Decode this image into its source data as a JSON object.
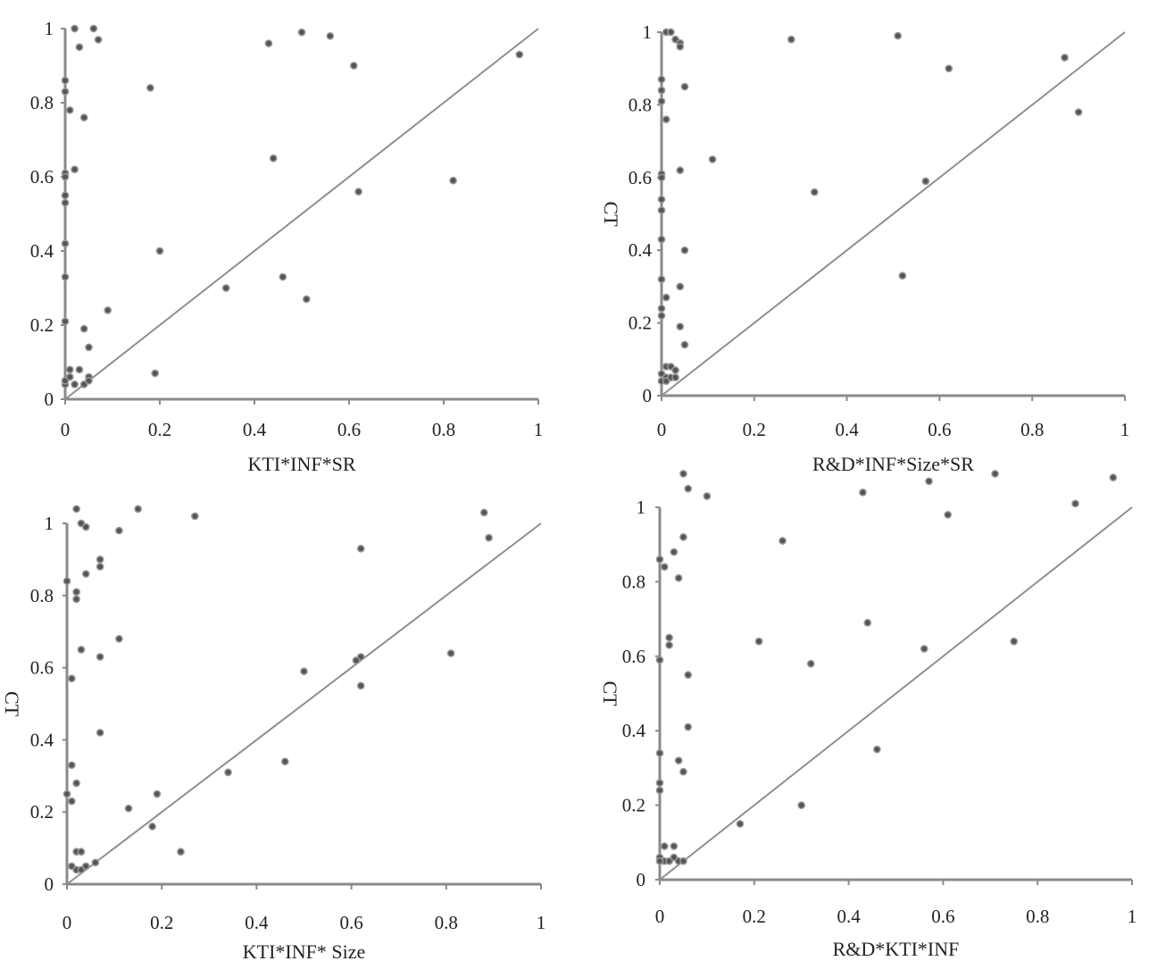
{
  "chart_data": [
    {
      "type": "scatter",
      "xlabel": "KTI*INF*SR",
      "ylabel": "",
      "xlim": [
        0,
        1
      ],
      "ylim": [
        0,
        1
      ],
      "x_ticks": [
        "0",
        "0.2",
        "0.4",
        "0.6",
        "0.8",
        "1"
      ],
      "y_ticks": [
        "0",
        "0.2",
        "0.4",
        "0.6",
        "0.8",
        "1"
      ],
      "grid": false,
      "reference_line": [
        [
          0,
          0
        ],
        [
          1,
          1
        ]
      ],
      "points": [
        [
          0.02,
          1.0
        ],
        [
          0.06,
          1.0
        ],
        [
          0.07,
          0.97
        ],
        [
          0.03,
          0.95
        ],
        [
          0.43,
          0.96
        ],
        [
          0.5,
          0.99
        ],
        [
          0.56,
          0.98
        ],
        [
          0.61,
          0.9
        ],
        [
          0.96,
          0.93
        ],
        [
          0.18,
          0.84
        ],
        [
          0.0,
          0.86
        ],
        [
          0.0,
          0.83
        ],
        [
          0.01,
          0.78
        ],
        [
          0.04,
          0.76
        ],
        [
          0.0,
          0.61
        ],
        [
          0.02,
          0.62
        ],
        [
          0.0,
          0.6
        ],
        [
          0.44,
          0.65
        ],
        [
          0.0,
          0.55
        ],
        [
          0.0,
          0.53
        ],
        [
          0.62,
          0.56
        ],
        [
          0.82,
          0.59
        ],
        [
          0.0,
          0.42
        ],
        [
          0.2,
          0.4
        ],
        [
          0.34,
          0.3
        ],
        [
          0.46,
          0.33
        ],
        [
          0.51,
          0.27
        ],
        [
          0.0,
          0.33
        ],
        [
          0.09,
          0.24
        ],
        [
          0.0,
          0.21
        ],
        [
          0.04,
          0.19
        ],
        [
          0.05,
          0.14
        ],
        [
          0.19,
          0.07
        ],
        [
          0.01,
          0.08
        ],
        [
          0.03,
          0.08
        ],
        [
          0.05,
          0.06
        ],
        [
          0.0,
          0.04
        ],
        [
          0.02,
          0.04
        ],
        [
          0.04,
          0.04
        ],
        [
          0.05,
          0.05
        ],
        [
          0.0,
          0.05
        ],
        [
          0.01,
          0.06
        ]
      ]
    },
    {
      "type": "scatter",
      "xlabel": "R&D*INF*Size*SR",
      "ylabel": "CT",
      "xlim": [
        0,
        1
      ],
      "ylim": [
        0,
        1
      ],
      "x_ticks": [
        "0",
        "0.2",
        "0.4",
        "0.6",
        "0.8",
        "1"
      ],
      "y_ticks": [
        "0",
        "0.2",
        "0.4",
        "0.6",
        "0.8",
        "1"
      ],
      "grid": false,
      "reference_line": [
        [
          0,
          0
        ],
        [
          1,
          1
        ]
      ],
      "points": [
        [
          0.01,
          1.0
        ],
        [
          0.02,
          1.0
        ],
        [
          0.03,
          0.98
        ],
        [
          0.04,
          0.97
        ],
        [
          0.04,
          0.96
        ],
        [
          0.28,
          0.98
        ],
        [
          0.51,
          0.99
        ],
        [
          0.62,
          0.9
        ],
        [
          0.87,
          0.93
        ],
        [
          0.9,
          0.78
        ],
        [
          0.05,
          0.85
        ],
        [
          0.0,
          0.87
        ],
        [
          0.0,
          0.84
        ],
        [
          0.0,
          0.81
        ],
        [
          0.01,
          0.76
        ],
        [
          0.11,
          0.65
        ],
        [
          0.04,
          0.62
        ],
        [
          0.0,
          0.61
        ],
        [
          0.0,
          0.6
        ],
        [
          0.33,
          0.56
        ],
        [
          0.57,
          0.59
        ],
        [
          0.0,
          0.54
        ],
        [
          0.0,
          0.51
        ],
        [
          0.0,
          0.43
        ],
        [
          0.05,
          0.4
        ],
        [
          0.52,
          0.33
        ],
        [
          0.0,
          0.32
        ],
        [
          0.04,
          0.3
        ],
        [
          0.01,
          0.27
        ],
        [
          0.0,
          0.24
        ],
        [
          0.0,
          0.22
        ],
        [
          0.04,
          0.19
        ],
        [
          0.05,
          0.14
        ],
        [
          0.01,
          0.08
        ],
        [
          0.02,
          0.08
        ],
        [
          0.03,
          0.07
        ],
        [
          0.0,
          0.06
        ],
        [
          0.01,
          0.05
        ],
        [
          0.02,
          0.05
        ],
        [
          0.0,
          0.04
        ],
        [
          0.01,
          0.04
        ],
        [
          0.03,
          0.05
        ]
      ]
    },
    {
      "type": "scatter",
      "xlabel": "KTI*INF* Size",
      "ylabel": "CT",
      "xlim": [
        0,
        1
      ],
      "ylim": [
        0,
        1
      ],
      "x_ticks": [
        "0",
        "0.2",
        "0.4",
        "0.6",
        "0.8",
        "1"
      ],
      "y_ticks": [
        "0",
        "0.2",
        "0.4",
        "0.6",
        "0.8",
        "1"
      ],
      "grid": false,
      "reference_line": [
        [
          0,
          0
        ],
        [
          1,
          1
        ]
      ],
      "points": [
        [
          0.02,
          1.04
        ],
        [
          0.15,
          1.04
        ],
        [
          0.27,
          1.02
        ],
        [
          0.03,
          1.0
        ],
        [
          0.04,
          0.99
        ],
        [
          0.11,
          0.98
        ],
        [
          0.88,
          1.03
        ],
        [
          0.89,
          0.96
        ],
        [
          0.62,
          0.93
        ],
        [
          0.07,
          0.9
        ],
        [
          0.07,
          0.88
        ],
        [
          0.04,
          0.86
        ],
        [
          0.02,
          0.81
        ],
        [
          0.02,
          0.79
        ],
        [
          0.0,
          0.84
        ],
        [
          0.11,
          0.68
        ],
        [
          0.03,
          0.65
        ],
        [
          0.07,
          0.63
        ],
        [
          0.01,
          0.57
        ],
        [
          0.62,
          0.63
        ],
        [
          0.61,
          0.62
        ],
        [
          0.81,
          0.64
        ],
        [
          0.5,
          0.59
        ],
        [
          0.62,
          0.55
        ],
        [
          0.07,
          0.42
        ],
        [
          0.01,
          0.33
        ],
        [
          0.02,
          0.28
        ],
        [
          0.34,
          0.31
        ],
        [
          0.46,
          0.34
        ],
        [
          0.0,
          0.25
        ],
        [
          0.01,
          0.23
        ],
        [
          0.13,
          0.21
        ],
        [
          0.19,
          0.25
        ],
        [
          0.18,
          0.16
        ],
        [
          0.24,
          0.09
        ],
        [
          0.02,
          0.09
        ],
        [
          0.03,
          0.09
        ],
        [
          0.06,
          0.06
        ],
        [
          0.01,
          0.05
        ],
        [
          0.02,
          0.04
        ],
        [
          0.03,
          0.04
        ],
        [
          0.04,
          0.05
        ]
      ]
    },
    {
      "type": "scatter",
      "xlabel": "R&D*KTI*INF",
      "ylabel": "CT",
      "xlim": [
        0,
        1
      ],
      "ylim": [
        0,
        1
      ],
      "x_ticks": [
        "0",
        "0.2",
        "0.4",
        "0.6",
        "0.8",
        "1"
      ],
      "y_ticks": [
        "0",
        "0.2",
        "0.4",
        "0.6",
        "0.8",
        "1"
      ],
      "grid": false,
      "reference_line": [
        [
          0,
          0
        ],
        [
          1,
          1
        ]
      ],
      "points": [
        [
          0.05,
          1.09
        ],
        [
          0.06,
          1.05
        ],
        [
          0.1,
          1.03
        ],
        [
          0.43,
          1.04
        ],
        [
          0.57,
          1.07
        ],
        [
          0.71,
          1.09
        ],
        [
          0.96,
          1.08
        ],
        [
          0.88,
          1.01
        ],
        [
          0.61,
          0.98
        ],
        [
          0.05,
          0.92
        ],
        [
          0.26,
          0.91
        ],
        [
          0.03,
          0.88
        ],
        [
          0.01,
          0.84
        ],
        [
          0.04,
          0.81
        ],
        [
          0.0,
          0.86
        ],
        [
          0.02,
          0.65
        ],
        [
          0.02,
          0.63
        ],
        [
          0.21,
          0.64
        ],
        [
          0.44,
          0.69
        ],
        [
          0.56,
          0.62
        ],
        [
          0.75,
          0.64
        ],
        [
          0.0,
          0.59
        ],
        [
          0.06,
          0.55
        ],
        [
          0.32,
          0.58
        ],
        [
          0.06,
          0.41
        ],
        [
          0.0,
          0.34
        ],
        [
          0.04,
          0.32
        ],
        [
          0.46,
          0.35
        ],
        [
          0.05,
          0.29
        ],
        [
          0.0,
          0.26
        ],
        [
          0.0,
          0.24
        ],
        [
          0.3,
          0.2
        ],
        [
          0.17,
          0.15
        ],
        [
          0.01,
          0.09
        ],
        [
          0.03,
          0.09
        ],
        [
          0.0,
          0.06
        ],
        [
          0.01,
          0.05
        ],
        [
          0.02,
          0.05
        ],
        [
          0.03,
          0.06
        ],
        [
          0.04,
          0.05
        ],
        [
          0.05,
          0.05
        ],
        [
          0.0,
          0.05
        ]
      ]
    }
  ]
}
